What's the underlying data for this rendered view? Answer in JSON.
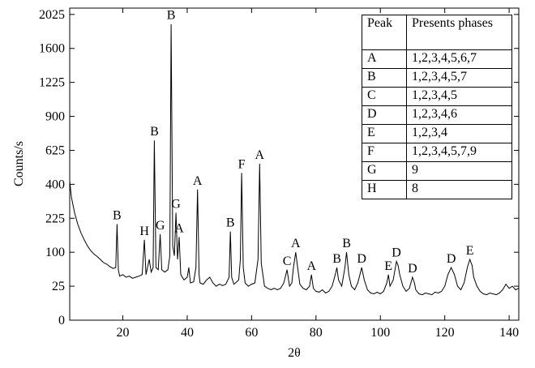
{
  "chart_data": {
    "type": "line",
    "x_label": "2θ",
    "y_label": "Counts/s",
    "color": "#000000",
    "yscale": "sqrt",
    "xlim": [
      3.5,
      143
    ],
    "ylim": [
      0,
      2110
    ],
    "xticks": [
      20,
      40,
      60,
      80,
      100,
      120,
      140
    ],
    "yticks": [
      0,
      25,
      100,
      225,
      400,
      625,
      900,
      1225,
      1600,
      2025
    ],
    "x": [
      3.5,
      4,
      5,
      6,
      7,
      8,
      9,
      10,
      11,
      12,
      13,
      14,
      15,
      16,
      17,
      17.8,
      18.2,
      18.6,
      19,
      20,
      21,
      22,
      23,
      24,
      25,
      26,
      26.7,
      27.2,
      28.2,
      28.8,
      29.4,
      29.8,
      30.3,
      31,
      31.6,
      32.1,
      33,
      34,
      34.6,
      35,
      35.5,
      36,
      36.5,
      37,
      37.5,
      38,
      39,
      40,
      40.5,
      41,
      42,
      42.7,
      43.2,
      43.7,
      44,
      45,
      46,
      47,
      48,
      49,
      50,
      51,
      52,
      53,
      53.4,
      53.8,
      54.5,
      55,
      56,
      56.5,
      56.9,
      57.4,
      58,
      59,
      60,
      61,
      62,
      62.5,
      63,
      64,
      65,
      66,
      67,
      68,
      69,
      70,
      71,
      71.8,
      72.5,
      73,
      73.7,
      74.3,
      75,
      76,
      77,
      78,
      78.6,
      79.2,
      80,
      81,
      82,
      83,
      84,
      85,
      86,
      86.5,
      87,
      88,
      89,
      89.5,
      90.2,
      91,
      92,
      93,
      94.2,
      95,
      96,
      97,
      98,
      99,
      100,
      101,
      102,
      102.5,
      103,
      104,
      105,
      105.5,
      106,
      107,
      108,
      109,
      110,
      110.6,
      111,
      112,
      113,
      114,
      115,
      116,
      117,
      118,
      119,
      120,
      121,
      122,
      123,
      124,
      125,
      126,
      127,
      127.8,
      128.5,
      129,
      130,
      131,
      132,
      133,
      134,
      135,
      136,
      137,
      138,
      139,
      140,
      141,
      142,
      143
    ],
    "values": [
      420,
      330,
      250,
      200,
      165,
      140,
      120,
      105,
      95,
      88,
      80,
      72,
      68,
      62,
      58,
      60,
      200,
      55,
      42,
      45,
      40,
      42,
      38,
      40,
      42,
      45,
      140,
      45,
      80,
      50,
      60,
      700,
      60,
      55,
      160,
      55,
      50,
      55,
      90,
      1900,
      120,
      90,
      250,
      80,
      150,
      45,
      35,
      40,
      60,
      30,
      32,
      60,
      370,
      45,
      30,
      28,
      35,
      40,
      30,
      25,
      28,
      26,
      28,
      40,
      170,
      40,
      28,
      30,
      35,
      80,
      470,
      60,
      30,
      25,
      28,
      30,
      80,
      530,
      70,
      25,
      22,
      20,
      22,
      20,
      22,
      30,
      55,
      25,
      30,
      60,
      100,
      60,
      28,
      22,
      20,
      25,
      45,
      22,
      18,
      17,
      20,
      16,
      18,
      25,
      45,
      60,
      35,
      25,
      60,
      100,
      45,
      25,
      20,
      30,
      60,
      35,
      20,
      16,
      15,
      17,
      15,
      18,
      30,
      45,
      25,
      35,
      75,
      65,
      45,
      25,
      18,
      22,
      40,
      30,
      20,
      15,
      14,
      16,
      15,
      14,
      17,
      16,
      18,
      25,
      45,
      60,
      45,
      25,
      20,
      30,
      60,
      80,
      65,
      40,
      25,
      18,
      15,
      14,
      16,
      15,
      14,
      16,
      20,
      28,
      22,
      25,
      20,
      22
    ],
    "annotations": [
      {
        "text": "B",
        "x": 18.2
      },
      {
        "text": "H",
        "x": 26.7
      },
      {
        "text": "B",
        "x": 29.8
      },
      {
        "text": "G",
        "x": 31.6
      },
      {
        "text": "B",
        "x": 35
      },
      {
        "text": "G",
        "x": 36.5
      },
      {
        "text": "A",
        "x": 37.5
      },
      {
        "text": "A",
        "x": 43.2
      },
      {
        "text": "B",
        "x": 53.4
      },
      {
        "text": "F",
        "x": 56.9
      },
      {
        "text": "A",
        "x": 62.5
      },
      {
        "text": "C",
        "x": 71
      },
      {
        "text": "A",
        "x": 73.7
      },
      {
        "text": "A",
        "x": 78.6
      },
      {
        "text": "B",
        "x": 86.5
      },
      {
        "text": "B",
        "x": 89.5
      },
      {
        "text": "D",
        "x": 94.2
      },
      {
        "text": "E",
        "x": 102.5
      },
      {
        "text": "D",
        "x": 105
      },
      {
        "text": "D",
        "x": 110
      },
      {
        "text": "D",
        "x": 122
      },
      {
        "text": "E",
        "x": 127.8
      }
    ],
    "table": {
      "header": [
        "Peak",
        "Presents phases"
      ],
      "rows": [
        [
          "A",
          "1,2,3,4,5,6,7"
        ],
        [
          "B",
          "1,2,3,4,5,7"
        ],
        [
          "C",
          "1,2,3,4,5"
        ],
        [
          "D",
          "1,2,3,4,6"
        ],
        [
          "E",
          "1,2,3,4"
        ],
        [
          "F",
          "1,2,3,4,5,7,9"
        ],
        [
          "G",
          "9"
        ],
        [
          "H",
          "8"
        ]
      ]
    }
  }
}
